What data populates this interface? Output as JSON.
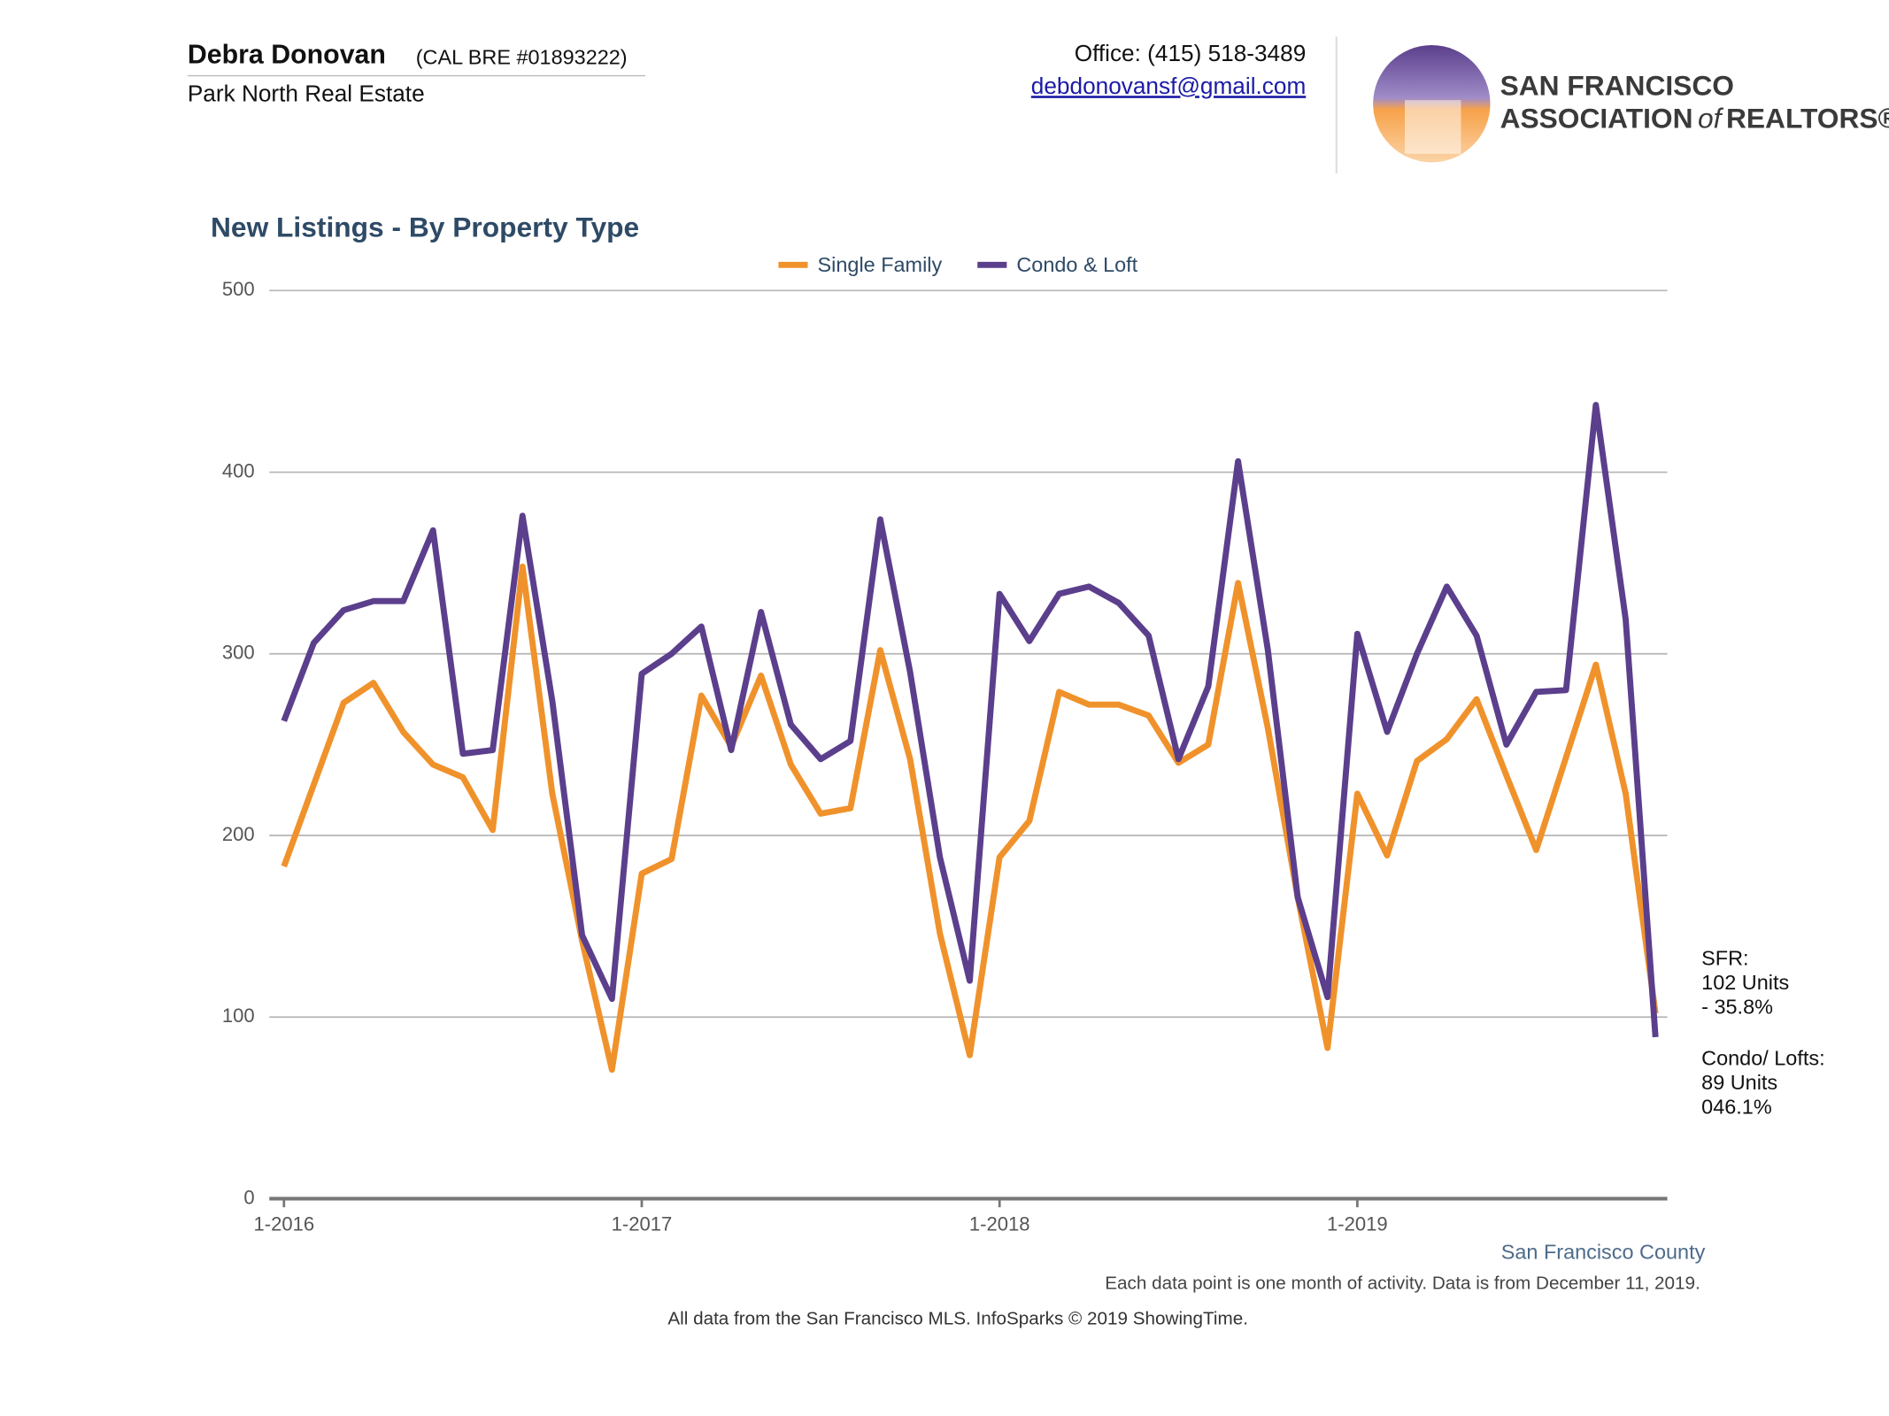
{
  "header": {
    "name": "Debra Donovan",
    "license": "(CAL BRE #01893222)",
    "company": "Park North Real Estate",
    "office": "Office: (415) 518-3489",
    "email": "debdonovansf@gmail.com"
  },
  "logo": {
    "line1": "SAN FRANCISCO",
    "line2a": "ASSOCIATION",
    "line2b": "of",
    "line2c": "REALTORS®"
  },
  "chart_data": {
    "type": "line",
    "title": "New Listings - By Property Type",
    "categories": [
      "1-2016",
      null,
      null,
      null,
      null,
      null,
      null,
      null,
      null,
      null,
      null,
      null,
      "1-2017",
      null,
      null,
      null,
      null,
      null,
      null,
      null,
      null,
      null,
      null,
      null,
      "1-2018",
      null,
      null,
      null,
      null,
      null,
      null,
      null,
      null,
      null,
      null,
      null,
      "1-2019",
      null,
      null,
      null,
      null,
      null,
      null,
      null,
      null,
      null,
      null
    ],
    "series": [
      {
        "name": "Single Family",
        "color": "#f0922b",
        "values": [
          183,
          228,
          273,
          284,
          257,
          239,
          232,
          203,
          348,
          223,
          142,
          71,
          179,
          187,
          277,
          249,
          288,
          239,
          212,
          215,
          302,
          242,
          146,
          79,
          188,
          208,
          279,
          272,
          272,
          266,
          240,
          250,
          339,
          259,
          166,
          83,
          223,
          189,
          241,
          253,
          275,
          233,
          192,
          243,
          294,
          223,
          102
        ]
      },
      {
        "name": "Condo & Loft",
        "color": "#5b3f8c",
        "values": [
          263,
          306,
          324,
          329,
          329,
          368,
          245,
          247,
          376,
          274,
          145,
          110,
          289,
          300,
          315,
          247,
          323,
          261,
          242,
          252,
          374,
          290,
          188,
          120,
          333,
          307,
          333,
          337,
          328,
          310,
          242,
          282,
          406,
          302,
          166,
          111,
          311,
          257,
          300,
          337,
          310,
          250,
          279,
          280,
          437,
          319,
          89
        ]
      }
    ],
    "ylim": [
      0,
      500
    ],
    "yticks": [
      0,
      100,
      200,
      300,
      400,
      500
    ],
    "grid": true,
    "legend": "top",
    "annotations": [
      "SFR:",
      "102 Units",
      "- 35.8%",
      "Condo/ Lofts:",
      "89 Units",
      "046.1%"
    ],
    "region": "San Francisco County",
    "note": "Each data point is one month of activity. Data is from December 11, 2019.",
    "source": "All data from the San Francisco MLS. InfoSparks © 2019 ShowingTime."
  }
}
